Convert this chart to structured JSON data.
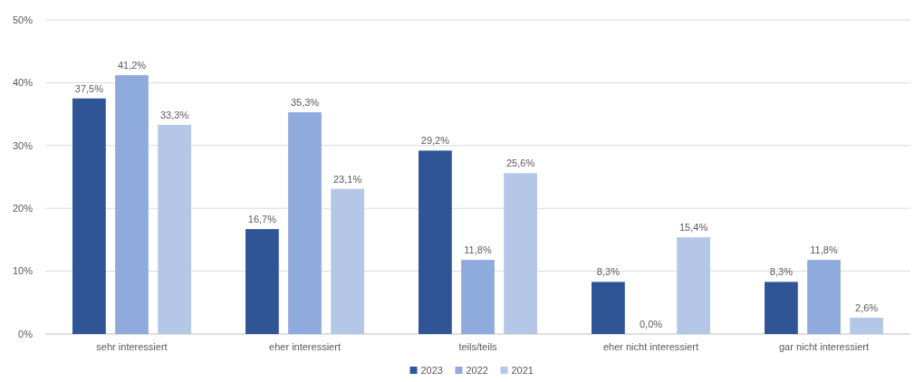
{
  "chart_data": {
    "type": "bar",
    "categories": [
      "sehr interessiert",
      "eher interessiert",
      "teils/teils",
      "eher nicht interessiert",
      "gar nicht interessiert"
    ],
    "series": [
      {
        "name": "2023",
        "color": "#2f5597",
        "values": [
          37.5,
          16.7,
          29.2,
          8.3,
          8.3
        ],
        "value_labels": [
          "37,5%",
          "16,7%",
          "29,2%",
          "8,3%",
          "8,3%"
        ]
      },
      {
        "name": "2022",
        "color": "#8faadc",
        "values": [
          41.2,
          35.3,
          11.8,
          0,
          11.8
        ],
        "value_labels": [
          "41,2%",
          "35,3%",
          "11,8%",
          "0,0%",
          "11,8%"
        ]
      },
      {
        "name": "2021",
        "color": "#b4c7e7",
        "values": [
          33.3,
          23.1,
          25.6,
          15.4,
          2.6
        ],
        "value_labels": [
          "33,3%",
          "23,1%",
          "25,6%",
          "15,4%",
          "2,6%"
        ]
      }
    ],
    "ylim": [
      0,
      50
    ],
    "yticks": [
      {
        "value": 0,
        "label": "0%"
      },
      {
        "value": 10,
        "label": "10%"
      },
      {
        "value": 20,
        "label": "20%"
      },
      {
        "value": 30,
        "label": "30%"
      },
      {
        "value": 40,
        "label": "40%"
      },
      {
        "value": 50,
        "label": "50%"
      }
    ],
    "grid": "y",
    "legend": "bottom"
  }
}
